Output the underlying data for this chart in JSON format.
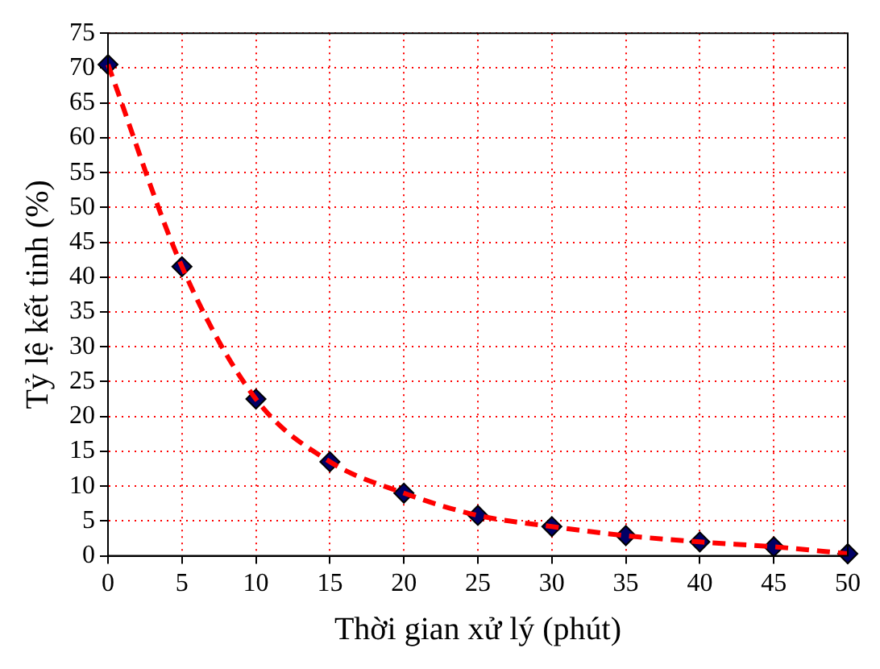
{
  "chart_data": {
    "type": "scatter",
    "xlabel": "Thời gian xử lý (phút)",
    "ylabel": "Tỷ lệ kết tinh (%)",
    "x": [
      0,
      5,
      10,
      15,
      20,
      25,
      30,
      35,
      40,
      45,
      50
    ],
    "series": [
      {
        "type": "line",
        "color": "#ff0000",
        "line_style": "dashed",
        "marker": "none",
        "values": [
          70.5,
          41.5,
          22.5,
          13.5,
          9,
          5.8,
          4.2,
          2.9,
          2,
          1.3,
          0.3
        ]
      },
      {
        "color": "#000066",
        "marker": "diamond",
        "values": [
          70.5,
          41.5,
          22.5,
          13.5,
          9,
          5.8,
          4.2,
          2.9,
          2,
          1.3,
          0.3
        ]
      }
    ],
    "xlim": [
      0,
      50
    ],
    "xticks": [
      0,
      5,
      10,
      15,
      20,
      25,
      30,
      35,
      40,
      45,
      50
    ],
    "ylim": [
      0,
      75
    ],
    "yticks": [
      0,
      5,
      10,
      15,
      20,
      25,
      30,
      35,
      40,
      45,
      50,
      55,
      60,
      65,
      70,
      75
    ],
    "grid": true,
    "legend": false
  }
}
